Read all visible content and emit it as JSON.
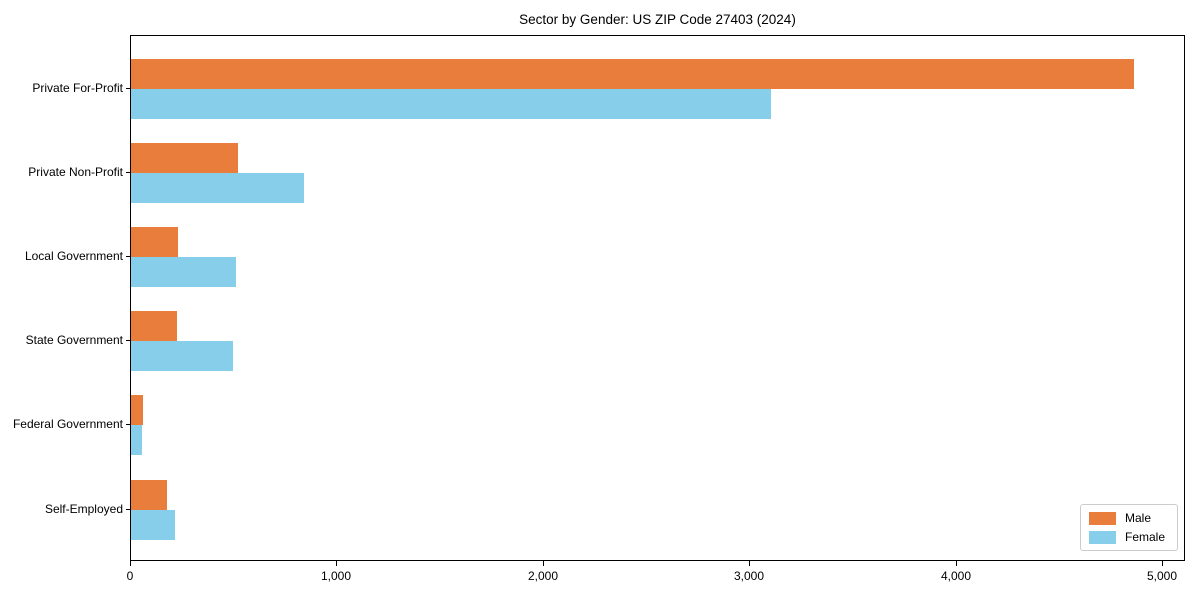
{
  "chart_data": {
    "type": "bar",
    "orientation": "horizontal",
    "title": "Sector by Gender: US ZIP Code 27403 (2024)",
    "categories": [
      "Private For-Profit",
      "Private Non-Profit",
      "Local Government",
      "State Government",
      "Federal Government",
      "Self-Employed"
    ],
    "series": [
      {
        "name": "Male",
        "color": "#e87d3c",
        "values": [
          4860,
          520,
          230,
          225,
          60,
          175
        ]
      },
      {
        "name": "Female",
        "color": "#87ceeb",
        "values": [
          3100,
          840,
          510,
          495,
          55,
          215
        ]
      }
    ],
    "xlabel": "",
    "ylabel": "",
    "xlim": [
      0,
      5100
    ],
    "xticks": [
      0,
      1000,
      2000,
      3000,
      4000,
      5000
    ],
    "xtick_labels": [
      "0",
      "1,000",
      "2,000",
      "3,000",
      "4,000",
      "5,000"
    ],
    "legend": {
      "position": "lower right",
      "entries": [
        "Male",
        "Female"
      ]
    },
    "grid": false,
    "background": "#ffffff",
    "axis_color": "#000000"
  }
}
